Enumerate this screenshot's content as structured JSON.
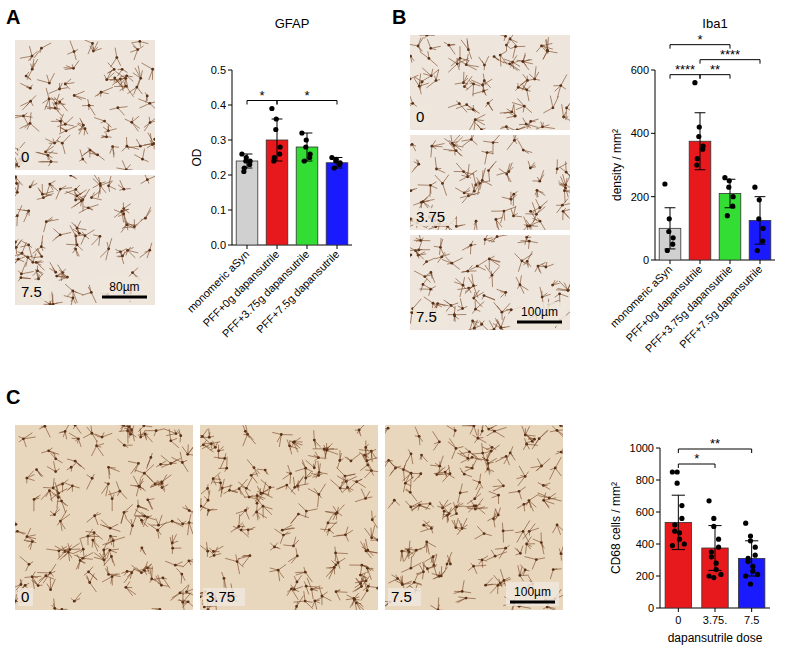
{
  "chart_data": [
    {
      "type": "bar",
      "title": "GFAP",
      "y_label": "OD",
      "categories": [
        "monomeric aSyn",
        "PFF+0g dapansutrile",
        "PFF+3.75g dapansutrile",
        "PFF+7.5g dapansutrile"
      ],
      "values": [
        0.24,
        0.3,
        0.28,
        0.235
      ],
      "errors": [
        0.02,
        0.06,
        0.04,
        0.015
      ],
      "points": [
        [
          0.26,
          0.25,
          0.24,
          0.24,
          0.23,
          0.22,
          0.21
        ],
        [
          0.39,
          0.36,
          0.33,
          0.28,
          0.26,
          0.25,
          0.24
        ],
        [
          0.32,
          0.3,
          0.28,
          0.26,
          0.25,
          0.24
        ],
        [
          0.25,
          0.245,
          0.24,
          0.235,
          0.23,
          0.22
        ]
      ],
      "colors": [
        "#d0d0d0",
        "#e8191c",
        "#33dd33",
        "#1a1aff"
      ],
      "ylim": [
        0,
        0.5
      ],
      "yticks": [
        {
          "value": 0,
          "label": "0.0"
        },
        0.1,
        0.2,
        0.3,
        0.4,
        0.5
      ],
      "significance": [
        {
          "pair": [
            0,
            1
          ],
          "label": "*"
        },
        {
          "pair": [
            1,
            3
          ],
          "label": "*"
        }
      ]
    },
    {
      "type": "bar",
      "title": "Iba1",
      "y_label": "density / mm²",
      "categories": [
        "monomeric aSyn",
        "PFF+0g dapansutrile",
        "PFF+3.75g dapansutrile",
        "PFF+7.5g dapansutrile"
      ],
      "values": [
        100,
        375,
        210,
        125
      ],
      "errors": [
        65,
        90,
        45,
        75
      ],
      "points": [
        [
          240,
          130,
          90,
          70,
          50,
          30
        ],
        [
          560,
          420,
          390,
          360,
          350,
          320,
          300
        ],
        [
          260,
          250,
          230,
          200,
          170,
          140
        ],
        [
          230,
          190,
          130,
          100,
          60,
          30
        ]
      ],
      "colors": [
        "#d0d0d0",
        "#e8191c",
        "#33dd33",
        "#1a1aff"
      ],
      "ylim": [
        0,
        600
      ],
      "yticks": [
        0,
        200,
        400,
        600
      ],
      "significance": [
        {
          "pair": [
            1,
            2
          ],
          "label": "**"
        },
        {
          "pair": [
            1,
            3
          ],
          "label": "****"
        },
        {
          "pair": [
            0,
            1
          ],
          "label": "****"
        },
        {
          "pair": [
            0,
            2
          ],
          "label": "*"
        }
      ]
    },
    {
      "type": "bar",
      "x_label": "dapansutrile dose",
      "y_label": "CD68 cells / mm²",
      "categories": [
        "0",
        "3.75.",
        "7.5"
      ],
      "values": [
        535,
        375,
        310
      ],
      "errors": [
        170,
        140,
        110
      ],
      "points": [
        [
          850,
          850,
          780,
          640,
          560,
          520,
          480,
          470,
          430,
          400,
          390
        ],
        [
          670,
          560,
          510,
          430,
          380,
          350,
          320,
          280,
          240,
          210,
          200,
          190
        ],
        [
          530,
          450,
          420,
          380,
          330,
          310,
          290,
          260,
          230,
          210,
          200,
          150
        ]
      ],
      "colors": [
        "#e8191c",
        "#e8191c",
        "#1a1aff"
      ],
      "ylim": [
        0,
        1000
      ],
      "yticks": [
        0,
        200,
        400,
        600,
        800,
        1000
      ],
      "significance": [
        {
          "pair": [
            0,
            1
          ],
          "label": "*"
        },
        {
          "pair": [
            0,
            2
          ],
          "label": "**"
        }
      ]
    }
  ],
  "panels": [
    {
      "letter": "A",
      "images": [
        "0",
        "7.5"
      ],
      "scale_bar": "80µm"
    },
    {
      "letter": "B",
      "images": [
        "0",
        "3.75",
        "7.5"
      ],
      "scale_bar": "100µm"
    },
    {
      "letter": "C",
      "images": [
        "0",
        "3.75",
        "7.5"
      ],
      "scale_bar": "100µm"
    }
  ]
}
